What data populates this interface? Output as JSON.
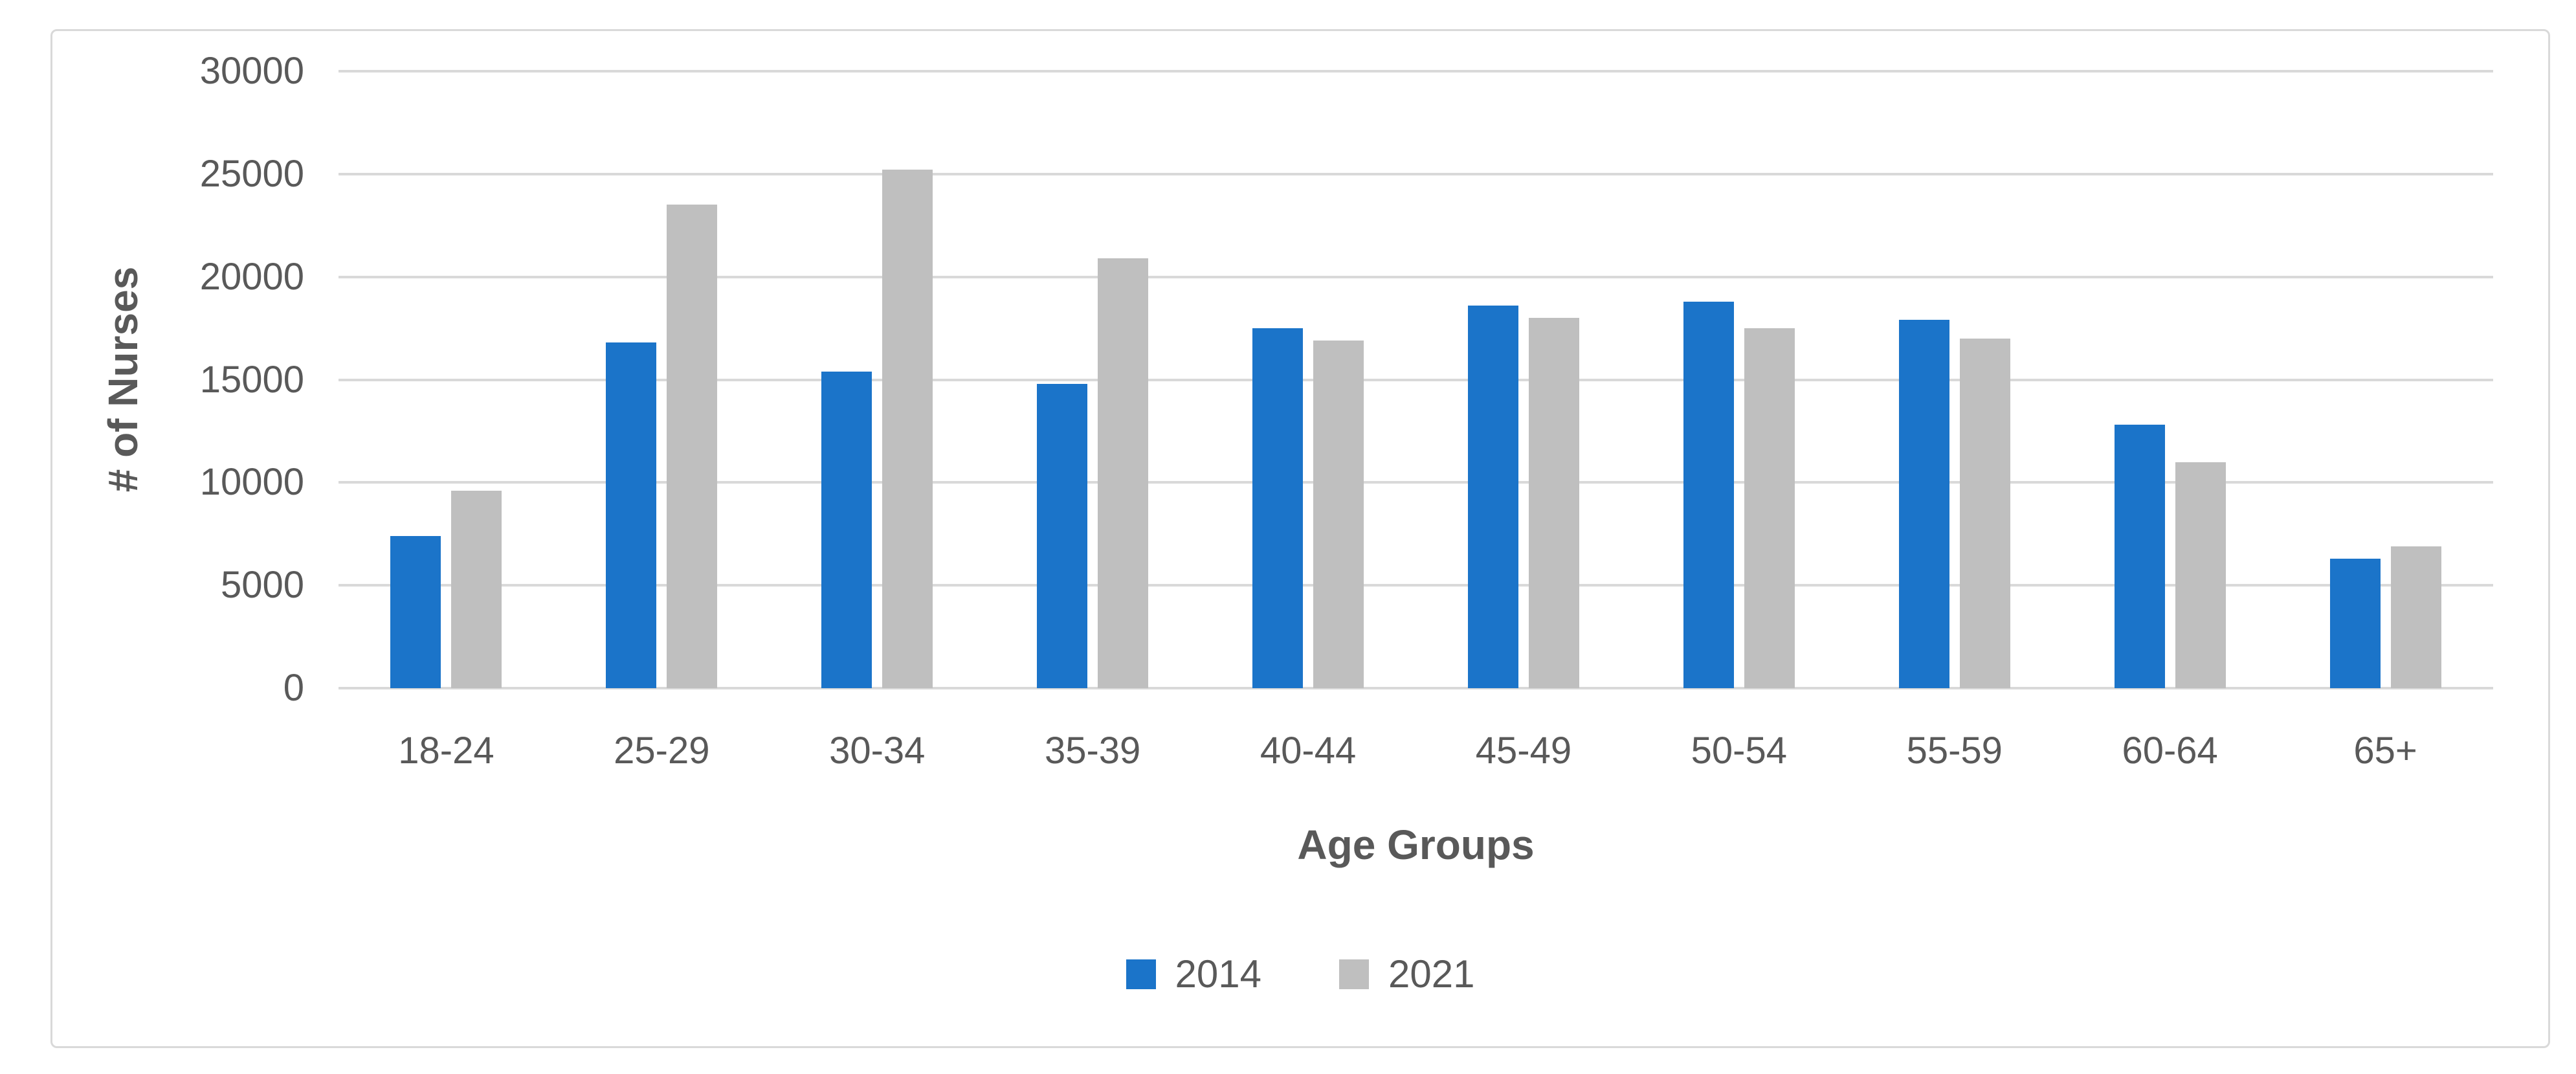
{
  "chart_data": {
    "type": "bar",
    "title": "",
    "xlabel": "Age Groups",
    "ylabel": "# of Nurses",
    "ylim": [
      0,
      30000
    ],
    "ystep": 5000,
    "ytick_labels": [
      "30000",
      "25000",
      "20000",
      "15000",
      "10000",
      "5000",
      "0"
    ],
    "grid": true,
    "legend_position": "bottom",
    "categories": [
      "18-24",
      "25-29",
      "30-34",
      "35-39",
      "40-44",
      "45-49",
      "50-54",
      "55-59",
      "60-64",
      "65+"
    ],
    "series": [
      {
        "name": "2014",
        "color": "#1B74C9",
        "values": [
          7400,
          16800,
          15400,
          14800,
          17500,
          18600,
          18800,
          17900,
          12800,
          6300
        ]
      },
      {
        "name": "2021",
        "color": "#BFBFBF",
        "values": [
          9600,
          23500,
          25200,
          20900,
          16900,
          18000,
          17500,
          17000,
          11000,
          6900
        ]
      }
    ],
    "colors": {
      "gridline": "#D9D9D9",
      "text": "#595959",
      "frame_border": "#D9D9D9",
      "background": "#FFFFFF"
    }
  }
}
